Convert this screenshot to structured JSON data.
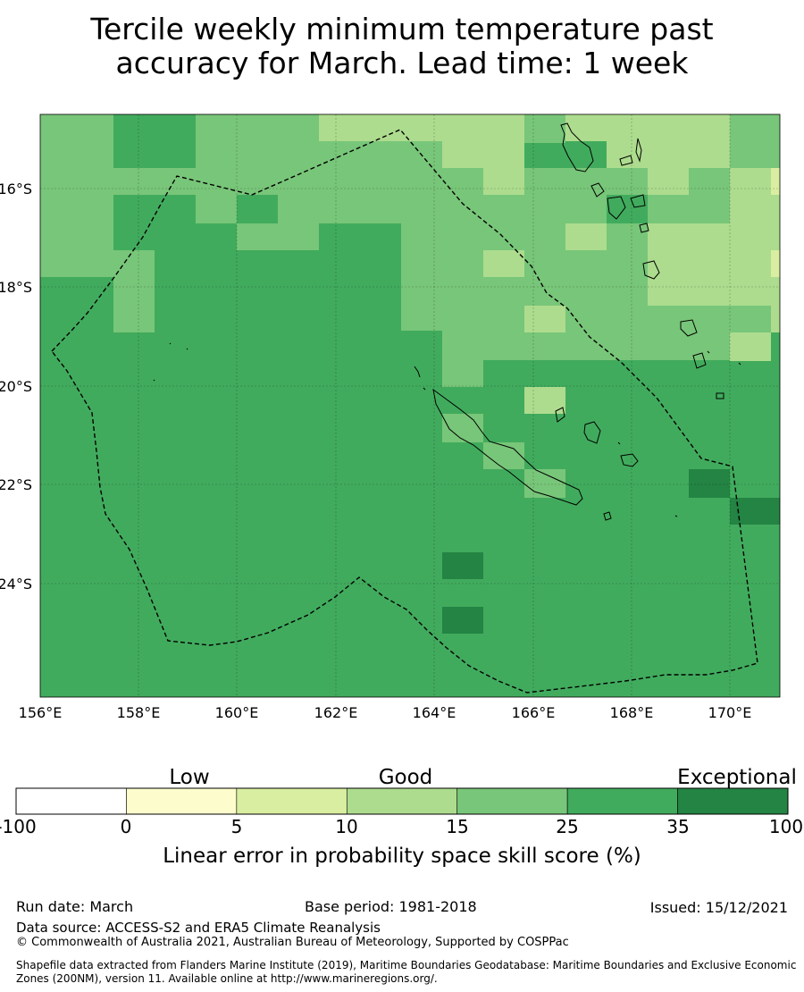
{
  "title_line1": "Tercile weekly minimum temperature past",
  "title_line2": "accuracy for March. Lead time: 1 week",
  "map": {
    "lon_ticks": [
      "156°E",
      "158°E",
      "160°E",
      "162°E",
      "164°E",
      "166°E",
      "168°E",
      "170°E"
    ],
    "lat_ticks": [
      "16°S",
      "18°S",
      "20°S",
      "22°S",
      "24°S"
    ]
  },
  "colorbar": {
    "categories": [
      "Low",
      "Good",
      "Exceptional"
    ],
    "tick_labels": [
      "-100",
      "0",
      "5",
      "10",
      "15",
      "25",
      "35",
      "100"
    ],
    "colors": [
      "#ffffff",
      "#fdfccd",
      "#d9eea0",
      "#addc8e",
      "#78c679",
      "#41ab5d",
      "#238443"
    ],
    "label": "Linear error in probability space skill score (%)"
  },
  "footer": {
    "run_date": "Run date: March",
    "base_period": "Base period: 1981-2018",
    "issued": "Issued: 15/12/2021",
    "data_source": "Data source: ACCESS-S2 and ERA5 Climate Reanalysis",
    "copyright": "© Commonwealth of Australia 2021, Australian Bureau of Meteorology, Supported by COSPPac",
    "shapefile": "Shapefile data extracted from Flanders Marine Institute (2019), Maritime Boundaries Geodatabase: Maritime Boundaries and Exclusive Economic Zones (200NM), version 11. Available online at http://www.marineregions.org/."
  }
}
